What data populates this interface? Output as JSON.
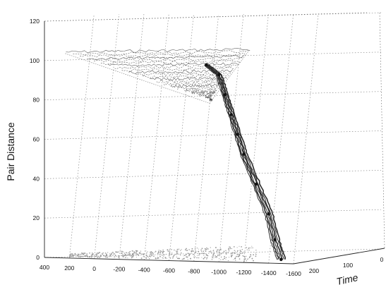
{
  "chart_data": {
    "type": "scatter",
    "projection": "3d",
    "title": "",
    "xlabel": "",
    "ylabel": "Pair Distance",
    "zlabel": "Time",
    "grid": true,
    "colors": {
      "trajectory": "#2a2a2a",
      "surface": "#555555",
      "floor": "#9a9a9a"
    },
    "y_ticks": [
      "0",
      "20",
      "40",
      "60",
      "80",
      "100",
      "120"
    ],
    "x_ticks": [
      "400",
      "200",
      "0",
      "-200",
      "-400",
      "-600",
      "-800",
      "-1000",
      "-1200",
      "-1400",
      "-1600"
    ],
    "depth_ticks": [
      "200",
      "100",
      "0"
    ],
    "ylim": [
      0,
      120
    ],
    "xlim": [
      400,
      -1600
    ],
    "series": [
      {
        "kind": "trajectory",
        "points": [
          [
            -1500,
            2
          ],
          [
            -1450,
            12
          ],
          [
            -1400,
            25
          ],
          [
            -1300,
            40
          ],
          [
            -1200,
            55
          ],
          [
            -1150,
            65
          ],
          [
            -1100,
            75
          ],
          [
            -1050,
            85
          ],
          [
            -1000,
            95
          ],
          [
            -900,
            100
          ]
        ]
      },
      {
        "kind": "surface",
        "level": 100,
        "x_range": [
          250,
          -1250
        ],
        "min_level": 79
      },
      {
        "kind": "floor",
        "level": 0,
        "x_range": [
          200,
          -1300
        ]
      }
    ]
  }
}
